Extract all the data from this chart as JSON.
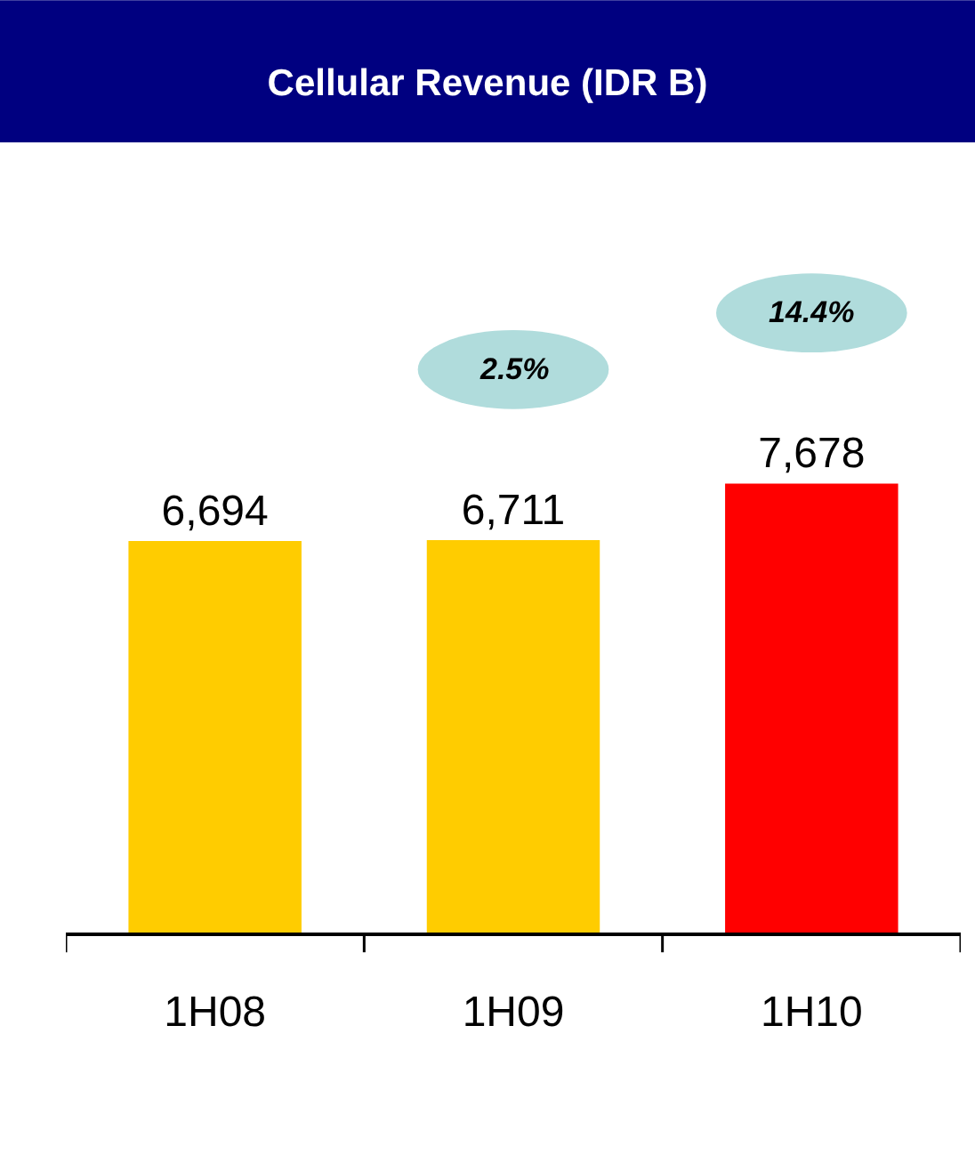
{
  "chart_data": {
    "type": "bar",
    "title": "Cellular Revenue (IDR B)",
    "categories": [
      "1H08",
      "1H09",
      "1H10"
    ],
    "values": [
      6694,
      6711,
      7678
    ],
    "colors": [
      "#ffcc00",
      "#ffcc00",
      "#ff0000"
    ],
    "data_labels": true,
    "value_labels": [
      "6,694",
      "6,711",
      "7,678"
    ],
    "annotations": [
      "2.5%",
      "14.4%"
    ],
    "grid": false,
    "legend": false
  }
}
